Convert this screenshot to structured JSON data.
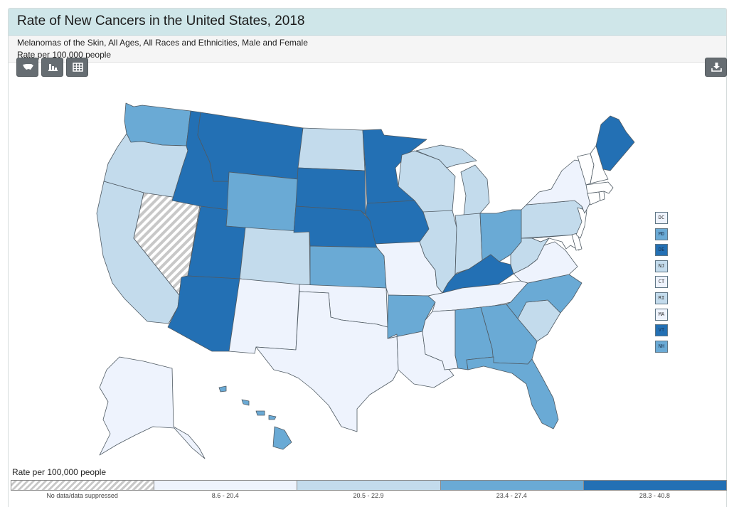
{
  "header": {
    "title": "Rate of New Cancers in the United States, 2018",
    "subtitle": "Melanomas of the Skin, All Ages, All Races and Ethnicities, Male and Female",
    "unit": "Rate per 100,000 people"
  },
  "toolbar": {
    "map_icon": "us-map-icon",
    "chart_icon": "bar-chart-icon",
    "table_icon": "table-icon",
    "download_icon": "download-icon"
  },
  "legend": {
    "title": "Rate per 100,000 people",
    "classes": [
      {
        "label": "No data/data suppressed",
        "color": "hatch"
      },
      {
        "label": "8.6 - 20.4",
        "color": "#eef3fd"
      },
      {
        "label": "20.5 - 22.9",
        "color": "#c3dbec"
      },
      {
        "label": "23.4 - 27.4",
        "color": "#6aaad5"
      },
      {
        "label": "28.3 - 40.8",
        "color": "#2370b4"
      }
    ]
  },
  "state_class": {
    "WA": 3,
    "OR": 2,
    "CA": 2,
    "NV": 0,
    "ID": 4,
    "MT": 4,
    "WY": 3,
    "UT": 4,
    "AZ": 4,
    "CO": 2,
    "NM": 1,
    "ND": 2,
    "SD": 4,
    "NE": 4,
    "KS": 3,
    "OK": 1,
    "TX": 1,
    "MN": 4,
    "IA": 4,
    "MO": 1,
    "AR": 3,
    "LA": 1,
    "WI": 2,
    "IL": 2,
    "MI": 2,
    "IN": 2,
    "OH": 3,
    "KY": 4,
    "TN": 1,
    "MS": 1,
    "AL": 3,
    "GA": 3,
    "FL": 3,
    "SC": 2,
    "NC": 3,
    "VA": 1,
    "WV": 2,
    "PA": 2,
    "NY": 1,
    "ME": 4,
    "AK": 1,
    "HI": 3
  },
  "small_states": [
    {
      "abbr": "DC",
      "class": 1
    },
    {
      "abbr": "MD",
      "class": 3
    },
    {
      "abbr": "DE",
      "class": 4
    },
    {
      "abbr": "NJ",
      "class": 2
    },
    {
      "abbr": "CT",
      "class": 1
    },
    {
      "abbr": "RI",
      "class": 2
    },
    {
      "abbr": "MA",
      "class": 1
    },
    {
      "abbr": "VT",
      "class": 4
    },
    {
      "abbr": "NH",
      "class": 3
    }
  ]
}
